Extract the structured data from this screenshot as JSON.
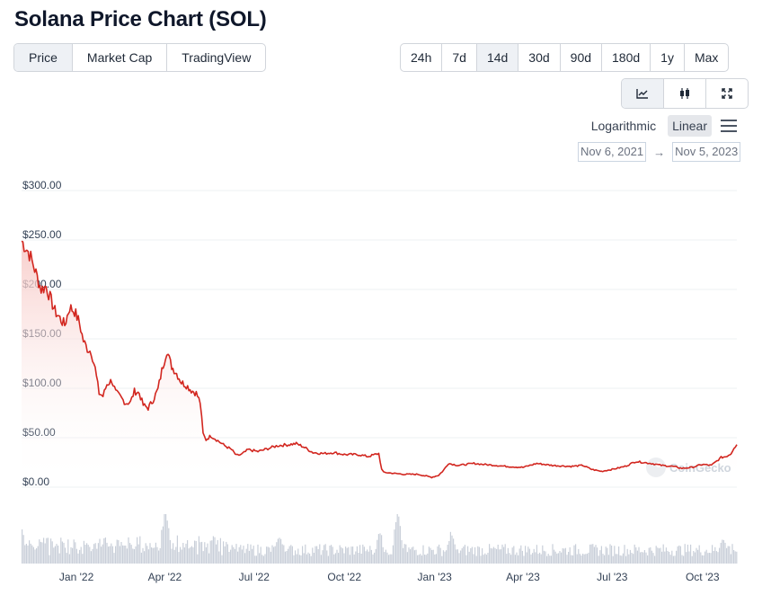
{
  "page": {
    "title": "Solana Price Chart (SOL)"
  },
  "view_tabs": [
    {
      "label": "Price",
      "active": true
    },
    {
      "label": "Market Cap",
      "active": false
    },
    {
      "label": "TradingView",
      "active": false
    }
  ],
  "range_tabs": [
    {
      "label": "24h",
      "active": false
    },
    {
      "label": "7d",
      "active": false
    },
    {
      "label": "14d",
      "active": true
    },
    {
      "label": "30d",
      "active": false
    },
    {
      "label": "90d",
      "active": false
    },
    {
      "label": "180d",
      "active": false
    },
    {
      "label": "1y",
      "active": false
    },
    {
      "label": "Max",
      "active": false
    }
  ],
  "chart_type_tabs": [
    {
      "icon": "line-chart-icon",
      "active": true
    },
    {
      "icon": "candlestick-icon",
      "active": false
    },
    {
      "icon": "fullscreen-icon",
      "active": false
    }
  ],
  "scale": {
    "logarithmic_label": "Logarithmic",
    "linear_label": "Linear",
    "active": "linear"
  },
  "date_range": {
    "from": "Nov 6, 2021",
    "to": "Nov 5, 2023",
    "arrow": "→"
  },
  "watermark": "CoinGecko",
  "colors": {
    "line": "#d2261f",
    "area_top": "#f7c9c6",
    "volume": "#c9cfd9",
    "grid": "#eef0f3"
  },
  "chart_data": {
    "type": "line",
    "title": "",
    "xlabel": "",
    "ylabel": "",
    "y_tick_labels": [
      "$0.00",
      "$50.00",
      "$100.00",
      "$150.00",
      "$200.00",
      "$250.00",
      "$300.00"
    ],
    "ylim": [
      0,
      300
    ],
    "x_tick_labels": [
      "Jan '22",
      "Apr '22",
      "Jul '22",
      "Oct '22",
      "Jan '23",
      "Apr '23",
      "Jul '23",
      "Oct '23"
    ],
    "x_tick_dates": [
      "2022-01-01",
      "2022-04-01",
      "2022-07-01",
      "2022-10-01",
      "2023-01-01",
      "2023-04-01",
      "2023-07-01",
      "2023-10-01"
    ],
    "xlim": [
      "2021-11-06",
      "2023-11-05"
    ],
    "grid": true,
    "legend": "none",
    "series": [
      {
        "x": [
          "2021-11-06",
          "2021-11-10",
          "2021-11-14",
          "2021-11-18",
          "2021-11-22",
          "2021-11-26",
          "2021-12-01",
          "2021-12-05",
          "2021-12-10",
          "2021-12-15",
          "2021-12-20",
          "2021-12-25",
          "2021-12-30",
          "2022-01-04",
          "2022-01-08",
          "2022-01-12",
          "2022-01-16",
          "2022-01-20",
          "2022-01-24",
          "2022-01-28",
          "2022-02-01",
          "2022-02-06",
          "2022-02-10",
          "2022-02-15",
          "2022-02-20",
          "2022-02-25",
          "2022-03-01",
          "2022-03-06",
          "2022-03-10",
          "2022-03-15",
          "2022-03-20",
          "2022-03-25",
          "2022-03-29",
          "2022-04-03",
          "2022-04-08",
          "2022-04-13",
          "2022-04-18",
          "2022-04-23",
          "2022-04-28",
          "2022-05-03",
          "2022-05-07",
          "2022-05-10",
          "2022-05-13",
          "2022-05-18",
          "2022-05-25",
          "2022-06-01",
          "2022-06-08",
          "2022-06-13",
          "2022-06-18",
          "2022-06-25",
          "2022-07-05",
          "2022-07-15",
          "2022-07-25",
          "2022-08-05",
          "2022-08-13",
          "2022-08-20",
          "2022-08-30",
          "2022-09-10",
          "2022-09-20",
          "2022-10-01",
          "2022-10-15",
          "2022-10-25",
          "2022-11-05",
          "2022-11-08",
          "2022-11-10",
          "2022-11-20",
          "2022-12-01",
          "2022-12-15",
          "2022-12-29",
          "2023-01-05",
          "2023-01-10",
          "2023-01-15",
          "2023-01-25",
          "2023-02-10",
          "2023-02-20",
          "2023-03-05",
          "2023-03-15",
          "2023-04-01",
          "2023-04-15",
          "2023-05-01",
          "2023-05-20",
          "2023-06-01",
          "2023-06-10",
          "2023-06-20",
          "2023-07-01",
          "2023-07-14",
          "2023-07-25",
          "2023-08-10",
          "2023-08-20",
          "2023-09-01",
          "2023-09-10",
          "2023-09-20",
          "2023-10-01",
          "2023-10-10",
          "2023-10-20",
          "2023-10-25",
          "2023-10-30",
          "2023-11-02",
          "2023-11-05"
        ],
        "y": [
          249,
          243,
          236,
          225,
          212,
          200,
          203,
          192,
          178,
          171,
          164,
          182,
          178,
          166,
          148,
          140,
          137,
          120,
          95,
          92,
          104,
          108,
          96,
          91,
          85,
          86,
          97,
          95,
          83,
          80,
          88,
          99,
          118,
          138,
          122,
          115,
          106,
          103,
          98,
          95,
          86,
          54,
          48,
          52,
          47,
          42,
          38,
          32,
          33,
          38,
          36,
          39,
          42,
          43,
          44,
          41,
          35,
          34,
          35,
          33,
          33,
          31,
          34,
          18,
          15,
          14,
          13,
          13,
          10,
          12,
          17,
          24,
          22,
          24,
          23,
          22,
          21,
          20,
          24,
          22,
          21,
          22,
          18,
          16,
          18,
          21,
          26,
          24,
          22,
          21,
          19,
          20,
          23,
          22,
          30,
          31,
          34,
          40,
          43
        ]
      }
    ]
  }
}
